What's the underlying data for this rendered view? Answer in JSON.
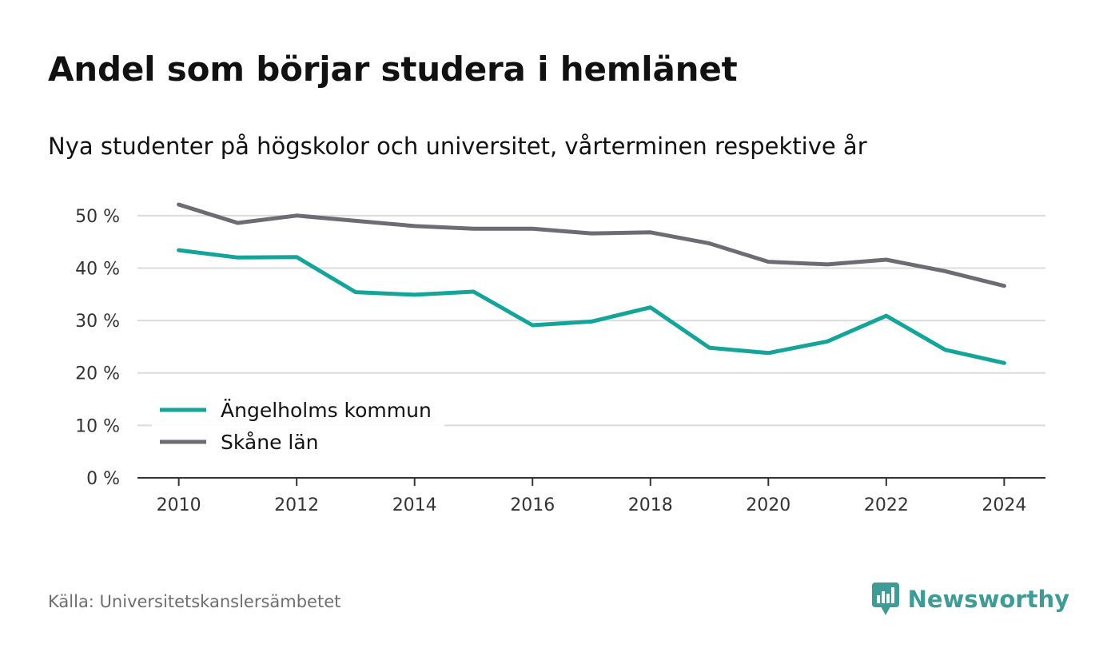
{
  "header": {
    "title": "Andel som börjar studera i hemlänet",
    "subtitle": "Nya studenter på högskolor och universitet, vårterminen respektive år"
  },
  "footer": {
    "source": "Källa: Universitetskanslersämbetet",
    "brand": "Newsworthy",
    "brand_icon": "newsworthy-logo-icon",
    "brand_color": "#3f9b95"
  },
  "chart_data": {
    "type": "line",
    "x": [
      2010,
      2011,
      2012,
      2013,
      2014,
      2015,
      2016,
      2017,
      2018,
      2019,
      2020,
      2021,
      2022,
      2023,
      2024
    ],
    "xticks": [
      2010,
      2012,
      2014,
      2016,
      2018,
      2020,
      2022,
      2024
    ],
    "xlim": [
      2009.3,
      2024.7
    ],
    "yticks": [
      0,
      10,
      20,
      30,
      40,
      50
    ],
    "ytick_labels": [
      "0 %",
      "10 %",
      "20 %",
      "30 %",
      "40 %",
      "50 %"
    ],
    "ylim": [
      0,
      55
    ],
    "grid": true,
    "legend_position": "bottom-left",
    "series": [
      {
        "name": "Ängelholms kommun",
        "color": "#13a59a",
        "values": [
          43.4,
          42.0,
          42.1,
          35.4,
          34.9,
          35.5,
          29.1,
          29.8,
          32.5,
          24.8,
          23.8,
          26.0,
          30.9,
          24.4,
          21.9
        ]
      },
      {
        "name": "Skåne län",
        "color": "#6d6b74",
        "values": [
          52.1,
          48.6,
          50.0,
          49.0,
          48.0,
          47.5,
          47.5,
          46.6,
          46.8,
          44.7,
          41.2,
          40.7,
          41.6,
          39.4,
          36.6
        ]
      }
    ]
  }
}
